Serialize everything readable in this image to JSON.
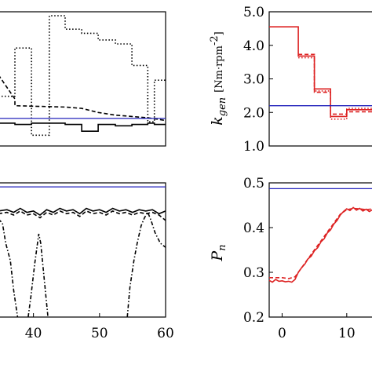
{
  "chart_data": [
    {
      "id": "top-left",
      "type": "line",
      "xlim": [
        34.7,
        60
      ],
      "ylim": [
        0,
        1
      ],
      "series": [
        {
          "style": "dotted",
          "color": "#000000",
          "points": [
            [
              34.7,
              0.37
            ],
            [
              37.2,
              0.37
            ],
            [
              37.2,
              0.73
            ],
            [
              39.7,
              0.73
            ],
            [
              39.7,
              0.08
            ],
            [
              42.4,
              0.08
            ],
            [
              42.4,
              0.97
            ],
            [
              44.8,
              0.97
            ],
            [
              44.8,
              0.87
            ],
            [
              47.3,
              0.87
            ],
            [
              47.3,
              0.84
            ],
            [
              49.8,
              0.84
            ],
            [
              49.8,
              0.79
            ],
            [
              52.4,
              0.79
            ],
            [
              52.4,
              0.76
            ],
            [
              54.9,
              0.76
            ],
            [
              54.9,
              0.6
            ],
            [
              57.3,
              0.6
            ],
            [
              57.3,
              0.18
            ],
            [
              58.3,
              0.18
            ],
            [
              58.3,
              0.49
            ],
            [
              60,
              0.49
            ]
          ]
        },
        {
          "style": "dashed",
          "color": "#000000",
          "points": [
            [
              34.7,
              0.53
            ],
            [
              37.2,
              0.35
            ],
            [
              37.2,
              0.3
            ],
            [
              44.8,
              0.29
            ],
            [
              47.3,
              0.28
            ],
            [
              49.8,
              0.25
            ],
            [
              52.4,
              0.23
            ],
            [
              54.9,
              0.22
            ],
            [
              57.3,
              0.21
            ],
            [
              60,
              0.19
            ]
          ]
        },
        {
          "style": "solid",
          "color": "#000000",
          "points": [
            [
              34.7,
              0.17
            ],
            [
              37.2,
              0.17
            ],
            [
              37.2,
              0.16
            ],
            [
              39.7,
              0.16
            ],
            [
              39.7,
              0.17
            ],
            [
              42.4,
              0.17
            ],
            [
              42.4,
              0.17
            ],
            [
              44.8,
              0.17
            ],
            [
              44.8,
              0.16
            ],
            [
              47.3,
              0.16
            ],
            [
              47.3,
              0.11
            ],
            [
              49.8,
              0.11
            ],
            [
              49.8,
              0.16
            ],
            [
              52.4,
              0.16
            ],
            [
              52.4,
              0.15
            ],
            [
              54.9,
              0.15
            ],
            [
              54.9,
              0.16
            ],
            [
              57.3,
              0.16
            ],
            [
              57.3,
              0.17
            ],
            [
              58.3,
              0.17
            ],
            [
              58.3,
              0.16
            ],
            [
              60,
              0.16
            ]
          ]
        },
        {
          "style": "solid",
          "color": "#2222bb",
          "points": [
            [
              34.7,
              0.205
            ],
            [
              60,
              0.205
            ]
          ]
        }
      ]
    },
    {
      "id": "top-right",
      "type": "line",
      "ylabel_main": "k",
      "ylabel_sub": "gen",
      "ylabel_unit": "[Nm·rpm",
      "ylabel_exp": "-2",
      "ylabel_close": "]",
      "xlim": [
        -2,
        15
      ],
      "ylim": [
        1.0,
        5.0
      ],
      "yticks": [
        "1.0",
        "2.0",
        "3.0",
        "4.0",
        "5.0"
      ],
      "series": [
        {
          "style": "solid",
          "color": "#dd2222",
          "points": [
            [
              -2,
              4.55
            ],
            [
              2.5,
              4.55
            ],
            [
              2.5,
              3.68
            ],
            [
              5,
              3.68
            ],
            [
              5,
              2.7
            ],
            [
              7.5,
              2.7
            ],
            [
              7.5,
              1.88
            ],
            [
              10,
              1.88
            ],
            [
              10,
              2.08
            ],
            [
              15,
              2.08
            ]
          ]
        },
        {
          "style": "dashed",
          "color": "#dd2222",
          "points": [
            [
              2.5,
              3.73
            ],
            [
              5,
              3.73
            ],
            [
              5,
              2.6
            ],
            [
              7.5,
              2.6
            ],
            [
              7.5,
              1.95
            ],
            [
              10,
              1.95
            ],
            [
              10,
              2.02
            ],
            [
              15,
              2.02
            ]
          ]
        },
        {
          "style": "dotted",
          "color": "#dd2222",
          "points": [
            [
              2.5,
              3.63
            ],
            [
              5,
              3.63
            ],
            [
              5,
              2.64
            ],
            [
              7.5,
              2.64
            ],
            [
              7.5,
              1.8
            ],
            [
              10,
              1.8
            ],
            [
              10,
              2.12
            ],
            [
              15,
              2.12
            ]
          ]
        },
        {
          "style": "solid",
          "color": "#2222bb",
          "points": [
            [
              -2,
              2.2
            ],
            [
              15,
              2.2
            ]
          ]
        }
      ]
    },
    {
      "id": "bottom-left",
      "type": "line",
      "xlim": [
        34.7,
        60
      ],
      "ylim": [
        0,
        1
      ],
      "xticks": [
        "40",
        "50",
        "60"
      ],
      "xtick_values": [
        40,
        50,
        60
      ],
      "series": [
        {
          "style": "solid",
          "color": "#000000",
          "points": [
            [
              34.7,
              0.79
            ],
            [
              36,
              0.8
            ],
            [
              37,
              0.78
            ],
            [
              38,
              0.81
            ],
            [
              39,
              0.78
            ],
            [
              40,
              0.79
            ],
            [
              41,
              0.76
            ],
            [
              42,
              0.8
            ],
            [
              43,
              0.78
            ],
            [
              44,
              0.81
            ],
            [
              45,
              0.79
            ],
            [
              46,
              0.8
            ],
            [
              47,
              0.77
            ],
            [
              48,
              0.81
            ],
            [
              49,
              0.79
            ],
            [
              50,
              0.8
            ],
            [
              51,
              0.78
            ],
            [
              52,
              0.81
            ],
            [
              53,
              0.79
            ],
            [
              54,
              0.8
            ],
            [
              55,
              0.78
            ],
            [
              56,
              0.8
            ],
            [
              57,
              0.79
            ],
            [
              58,
              0.8
            ],
            [
              59,
              0.77
            ],
            [
              60,
              0.79
            ]
          ]
        },
        {
          "style": "dashed",
          "color": "#000000",
          "points": [
            [
              34.7,
              0.77
            ],
            [
              36,
              0.78
            ],
            [
              37,
              0.76
            ],
            [
              38,
              0.79
            ],
            [
              39,
              0.76
            ],
            [
              40,
              0.77
            ],
            [
              41,
              0.74
            ],
            [
              42,
              0.78
            ],
            [
              43,
              0.76
            ],
            [
              44,
              0.79
            ],
            [
              45,
              0.77
            ],
            [
              46,
              0.78
            ],
            [
              47,
              0.75
            ],
            [
              48,
              0.79
            ],
            [
              49,
              0.77
            ],
            [
              50,
              0.78
            ],
            [
              51,
              0.76
            ],
            [
              52,
              0.79
            ],
            [
              53,
              0.77
            ],
            [
              54,
              0.78
            ],
            [
              55,
              0.76
            ],
            [
              56,
              0.78
            ],
            [
              57,
              0.77
            ],
            [
              58,
              0.78
            ],
            [
              59,
              0.76
            ],
            [
              60,
              0.72
            ]
          ]
        },
        {
          "style": "dashdot",
          "color": "#000000",
          "points": [
            [
              34.7,
              0.73
            ],
            [
              35.3,
              0.7
            ],
            [
              35.8,
              0.55
            ],
            [
              36.5,
              0.42
            ],
            [
              37,
              0.2
            ],
            [
              37.6,
              0.0
            ]
          ]
        },
        {
          "style": "dashdot",
          "color": "#000000",
          "points": [
            [
              39.2,
              0.0
            ],
            [
              39.6,
              0.15
            ],
            [
              40.2,
              0.4
            ],
            [
              40.8,
              0.62
            ],
            [
              41.1,
              0.55
            ],
            [
              41.7,
              0.25
            ],
            [
              42.2,
              0.0
            ]
          ]
        },
        {
          "style": "dashdot",
          "color": "#000000",
          "points": [
            [
              54.2,
              0.0
            ],
            [
              54.6,
              0.22
            ],
            [
              55.2,
              0.42
            ],
            [
              55.7,
              0.55
            ],
            [
              56.3,
              0.68
            ],
            [
              56.8,
              0.74
            ],
            [
              57.3,
              0.78
            ],
            [
              57.8,
              0.72
            ],
            [
              58.4,
              0.63
            ],
            [
              59.2,
              0.55
            ],
            [
              60,
              0.52
            ]
          ]
        },
        {
          "style": "solid",
          "color": "#2222bb",
          "points": [
            [
              34.7,
              0.97
            ],
            [
              60,
              0.97
            ]
          ]
        }
      ]
    },
    {
      "id": "bottom-right",
      "type": "line",
      "ylabel_main": "P",
      "ylabel_sub": "n",
      "xlim": [
        -2,
        15
      ],
      "ylim": [
        0.2,
        0.5
      ],
      "yticks": [
        "0.2",
        "0.3",
        "0.4",
        "0.5"
      ],
      "xticks": [
        "0",
        "10"
      ],
      "xtick_values": [
        0,
        10
      ],
      "series": [
        {
          "style": "dashed",
          "color": "#dd2222",
          "points": [
            [
              -2,
              0.288
            ],
            [
              0,
              0.288
            ],
            [
              1,
              0.286
            ],
            [
              2,
              0.29
            ],
            [
              3,
              0.31
            ],
            [
              4,
              0.33
            ],
            [
              5,
              0.35
            ],
            [
              6,
              0.37
            ],
            [
              7,
              0.39
            ],
            [
              8,
              0.41
            ],
            [
              9,
              0.43
            ],
            [
              10,
              0.44
            ],
            [
              11,
              0.443
            ],
            [
              12,
              0.442
            ],
            [
              13,
              0.44
            ],
            [
              14,
              0.442
            ],
            [
              15,
              0.44
            ]
          ]
        },
        {
          "style": "solid",
          "color": "#dd2222",
          "points": [
            [
              -2,
              0.282
            ],
            [
              -1.5,
              0.278
            ],
            [
              -1,
              0.284
            ],
            [
              -0.5,
              0.28
            ],
            [
              0,
              0.281
            ],
            [
              0.5,
              0.279
            ],
            [
              1,
              0.28
            ],
            [
              1.5,
              0.278
            ],
            [
              2,
              0.284
            ],
            [
              2.5,
              0.3
            ],
            [
              3,
              0.31
            ],
            [
              3.5,
              0.318
            ],
            [
              4,
              0.33
            ],
            [
              4.5,
              0.336
            ],
            [
              5,
              0.348
            ],
            [
              5.5,
              0.355
            ],
            [
              6,
              0.368
            ],
            [
              6.5,
              0.375
            ],
            [
              7,
              0.388
            ],
            [
              7.5,
              0.395
            ],
            [
              8,
              0.408
            ],
            [
              8.5,
              0.416
            ],
            [
              9,
              0.428
            ],
            [
              9.5,
              0.436
            ],
            [
              10,
              0.442
            ],
            [
              10.5,
              0.438
            ],
            [
              11,
              0.445
            ],
            [
              11.5,
              0.439
            ],
            [
              12,
              0.443
            ],
            [
              12.5,
              0.437
            ],
            [
              13,
              0.441
            ],
            [
              13.5,
              0.436
            ],
            [
              14,
              0.44
            ],
            [
              15,
              0.438
            ]
          ]
        },
        {
          "style": "solid",
          "color": "#2222bb",
          "points": [
            [
              -2,
              0.487
            ],
            [
              15,
              0.487
            ]
          ]
        }
      ]
    }
  ]
}
